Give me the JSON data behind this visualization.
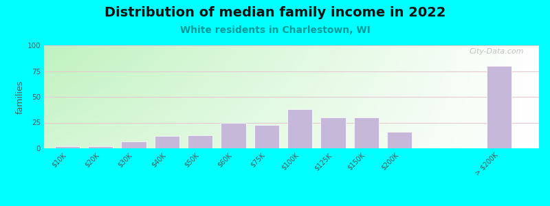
{
  "title": "Distribution of median family income in 2022",
  "subtitle": "White residents in Charlestown, WI",
  "ylabel": "families",
  "background_color": "#00FFFF",
  "bar_color": "#c5b8d8",
  "bar_edge_color": "#ffffff",
  "categories": [
    "$10K",
    "$20K",
    "$30K",
    "$40K",
    "$50K",
    "$60K",
    "$75K",
    "$100K",
    "$125K",
    "$150K",
    "$200K",
    "> $200K"
  ],
  "bar_values": [
    2,
    2,
    7,
    12,
    13,
    25,
    23,
    38,
    30,
    30,
    16,
    80
  ],
  "ylim": [
    0,
    100
  ],
  "yticks": [
    0,
    25,
    50,
    75,
    100
  ],
  "watermark": "City-Data.com",
  "title_fontsize": 14,
  "subtitle_fontsize": 10,
  "ylabel_fontsize": 9,
  "tick_fontsize": 7,
  "grid_color": "#e8c8d0",
  "bg_top_color": "#c8e6c4",
  "bg_bottom_color": "#f0faf0"
}
